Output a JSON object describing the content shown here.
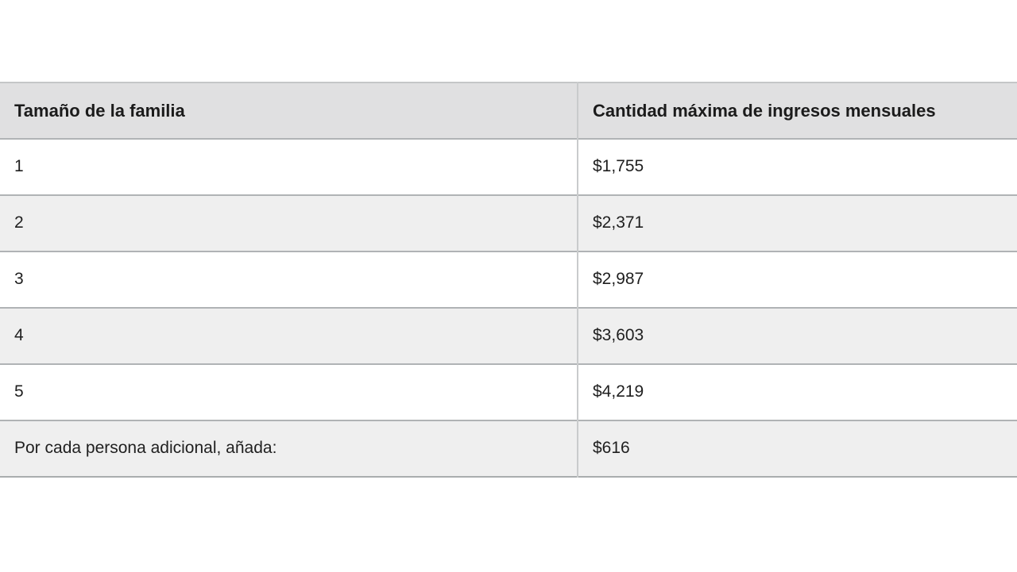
{
  "table": {
    "headers": {
      "family_size": "Tamaño de la familia",
      "max_income": "Cantidad máxima de ingresos mensuales"
    },
    "rows": [
      {
        "family_size": "1",
        "max_income": "$1,755"
      },
      {
        "family_size": "2",
        "max_income": "$2,371"
      },
      {
        "family_size": "3",
        "max_income": "$2,987"
      },
      {
        "family_size": "4",
        "max_income": "$3,603"
      },
      {
        "family_size": "5",
        "max_income": "$4,219"
      },
      {
        "family_size": "Por cada persona adicional, añada:",
        "max_income": "$616"
      }
    ]
  },
  "colors": {
    "header_bg": "#e0e0e1",
    "stripe_bg": "#efefef",
    "row_border": "#b0b3b5",
    "column_divider": "#c9cbcc",
    "text": "#1f1f1f",
    "page_bg": "#ffffff"
  }
}
